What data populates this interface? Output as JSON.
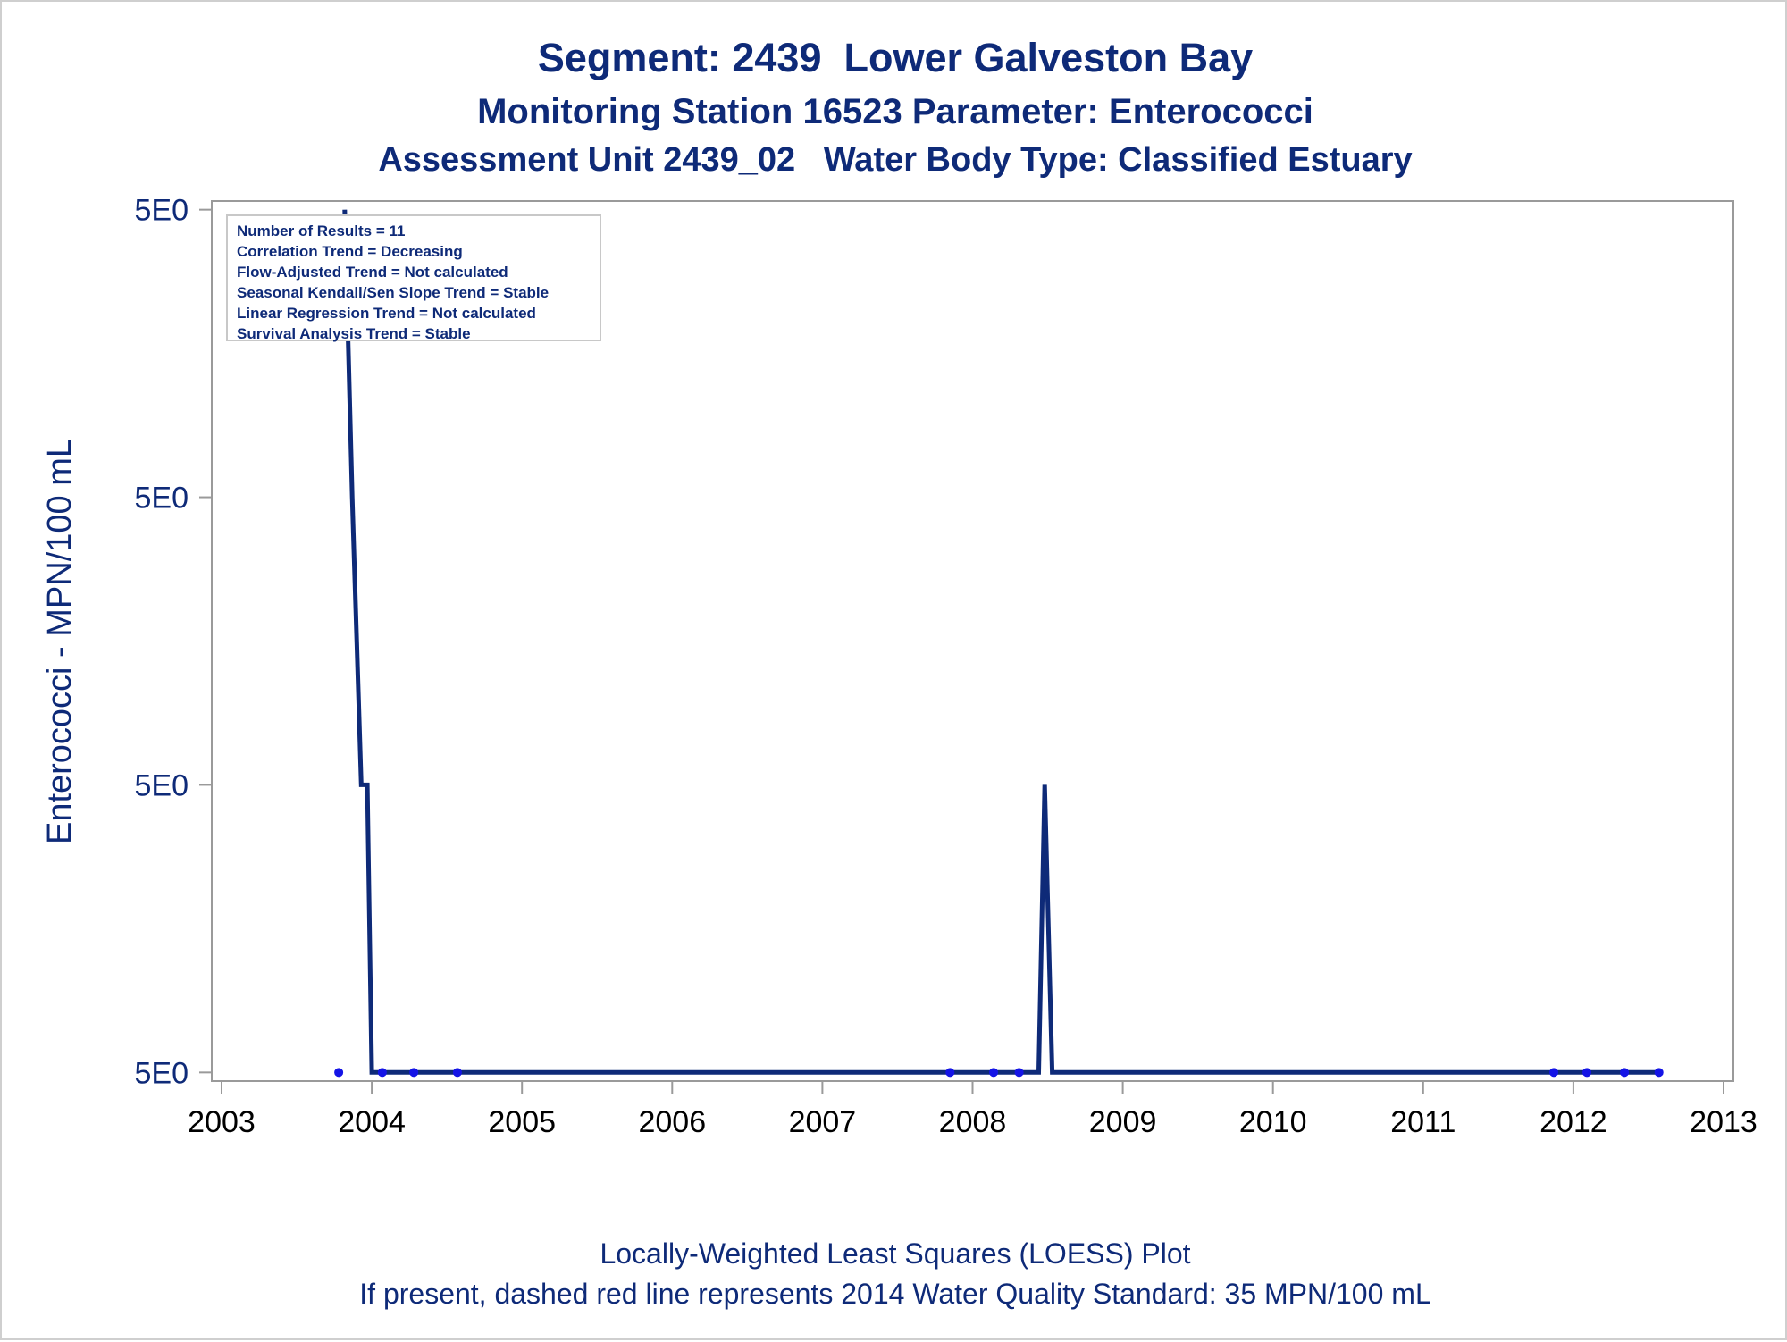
{
  "titles": {
    "line1": "Segment: 2439  Lower Galveston Bay",
    "line2": "Monitoring Station 16523 Parameter: Enterococci",
    "line3": "Assessment Unit 2439_02   Water Body Type: Classified Estuary"
  },
  "stats_box": [
    "Number of Results = 11",
    "Correlation Trend = Decreasing",
    "Flow-Adjusted Trend = Not calculated",
    "Seasonal Kendall/Sen Slope Trend = Stable",
    "Linear Regression Trend = Not calculated",
    "Survival Analysis Trend = Stable"
  ],
  "footnotes": {
    "line1": "Locally-Weighted Least Squares (LOESS) Plot",
    "line2": "If present, dashed red line represents 2014 Water Quality Standard: 35 MPN/100 mL"
  },
  "colors": {
    "text": "#0e2a78",
    "loess_line": "#0e2a78",
    "points": "#1414e6",
    "axis": "#9a9a9a"
  },
  "chart_data": {
    "type": "line",
    "xlabel": "",
    "ylabel": "Enterococci - MPN/100 mL",
    "xlim": [
      2003,
      2013
    ],
    "ylim": [
      0.97,
      4.03
    ],
    "x_ticks": [
      2003,
      2004,
      2005,
      2006,
      2007,
      2008,
      2009,
      2010,
      2011,
      2012,
      2013
    ],
    "x_tick_labels": [
      "2003",
      "2004",
      "2005",
      "2006",
      "2007",
      "2008",
      "2009",
      "2010",
      "2011",
      "2012",
      "2013"
    ],
    "y_ticks": [
      1,
      2,
      3,
      4
    ],
    "y_tick_labels": [
      "5E0",
      "5E0",
      "5E0",
      "5E0"
    ],
    "grid": false,
    "series": [
      {
        "kind": "loess_line",
        "x": [
          2003.82,
          2003.87,
          2003.93,
          2003.97,
          2004.0,
          2004.05,
          2004.3,
          2008.0,
          2008.44,
          2008.48,
          2008.53,
          2008.58,
          2012.58
        ],
        "y": [
          4.0,
          3.0,
          2.0,
          2.0,
          1.0,
          1.0,
          1.0,
          1.0,
          1.0,
          2.0,
          1.0,
          1.0,
          1.0
        ]
      },
      {
        "kind": "observations",
        "x": [
          2003.78,
          2004.07,
          2004.28,
          2004.57,
          2007.85,
          2008.14,
          2008.31,
          2011.87,
          2012.09,
          2012.34,
          2012.57
        ],
        "y": [
          1,
          1,
          1,
          1,
          1,
          1,
          1,
          1,
          1,
          1,
          1
        ]
      }
    ]
  }
}
